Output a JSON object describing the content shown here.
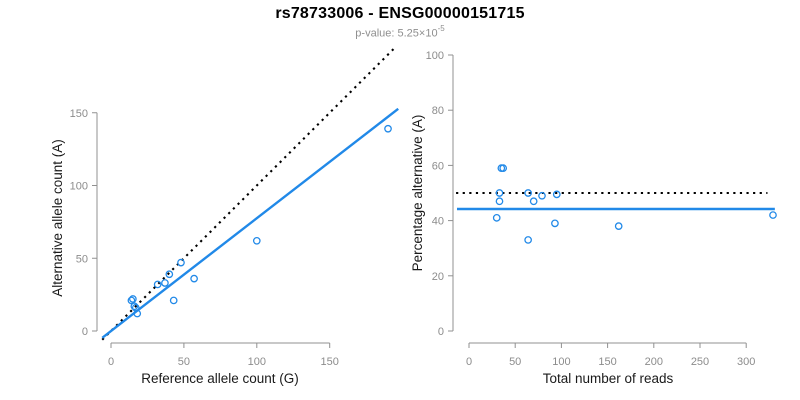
{
  "header": {
    "title": "rs78733006 - ENSG00000151715",
    "p_value_prefix": "p-value: 5.25×10",
    "p_value_exponent": "-5"
  },
  "colors": {
    "fit_blue": "#2189e8",
    "point_blue": "#2189e8",
    "identity_black": "#000000",
    "axis_gray": "#909090",
    "tick_label_gray": "#8c8c8c",
    "axis_title_black": "#1a1a1a",
    "subtitle_gray": "#8f8f8f"
  },
  "chart_data": [
    {
      "type": "scatter",
      "panel": "left",
      "xlabel": "Reference allele count (G)",
      "ylabel": "Alternative allele count (A)",
      "xticks": [
        0,
        50,
        100,
        150
      ],
      "yticks": [
        0,
        50,
        100,
        150
      ],
      "xlim": [
        0,
        198
      ],
      "ylim": [
        0,
        198
      ],
      "grid": false,
      "points": [
        [
          14,
          21
        ],
        [
          15,
          22
        ],
        [
          16,
          17
        ],
        [
          17,
          16
        ],
        [
          18,
          12
        ],
        [
          32,
          32
        ],
        [
          37,
          33
        ],
        [
          40,
          39
        ],
        [
          43,
          21
        ],
        [
          48,
          47
        ],
        [
          57,
          36
        ],
        [
          100,
          62
        ],
        [
          190,
          139
        ]
      ],
      "lines": [
        {
          "name": "identity-line",
          "kind": "ab",
          "slope": 1,
          "intercept": 0,
          "style": "dotted",
          "color_key": "identity_black",
          "x_from": -6,
          "x_to": 194
        },
        {
          "name": "fit-line",
          "kind": "ab",
          "slope": 0.775,
          "intercept": 0,
          "style": "solid",
          "color_key": "fit_blue",
          "x_from": -6,
          "x_to": 197
        }
      ]
    },
    {
      "type": "scatter",
      "panel": "right",
      "xlabel": "Total number of reads",
      "ylabel": "Percentage alternative (A)",
      "xticks": [
        0,
        50,
        100,
        150,
        200,
        250,
        300
      ],
      "yticks": [
        0,
        20,
        40,
        60,
        80,
        100
      ],
      "xlim": [
        0,
        340
      ],
      "ylim": [
        0,
        100
      ],
      "grid": false,
      "points": [
        [
          35,
          59
        ],
        [
          37,
          59
        ],
        [
          33,
          50
        ],
        [
          33,
          47
        ],
        [
          30,
          41
        ],
        [
          64,
          50
        ],
        [
          70,
          47
        ],
        [
          79,
          49
        ],
        [
          64,
          33
        ],
        [
          95,
          49.5
        ],
        [
          93,
          39
        ],
        [
          162,
          38
        ],
        [
          329,
          42
        ]
      ],
      "lines": [
        {
          "name": "identity-line",
          "kind": "h",
          "y": 50,
          "style": "dotted",
          "color_key": "identity_black",
          "x_from": -14,
          "x_to": 323
        },
        {
          "name": "fit-line",
          "kind": "h",
          "y": 44.2,
          "style": "solid",
          "color_key": "fit_blue",
          "x_from": -13,
          "x_to": 331
        }
      ]
    }
  ]
}
